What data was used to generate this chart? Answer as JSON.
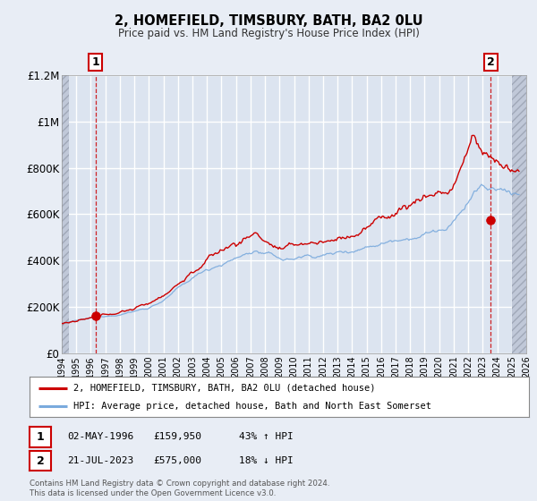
{
  "title": "2, HOMEFIELD, TIMSBURY, BATH, BA2 0LU",
  "subtitle": "Price paid vs. HM Land Registry's House Price Index (HPI)",
  "legend_line1": "2, HOMEFIELD, TIMSBURY, BATH, BA2 0LU (detached house)",
  "legend_line2": "HPI: Average price, detached house, Bath and North East Somerset",
  "transaction1_date": "02-MAY-1996",
  "transaction1_price": "£159,950",
  "transaction1_hpi": "43% ↑ HPI",
  "transaction2_date": "21-JUL-2023",
  "transaction2_price": "£575,000",
  "transaction2_hpi": "18% ↓ HPI",
  "footer1": "Contains HM Land Registry data © Crown copyright and database right 2024.",
  "footer2": "This data is licensed under the Open Government Licence v3.0.",
  "background_color": "#e8edf5",
  "plot_bg_color": "#dce4f0",
  "grid_color": "#ffffff",
  "red_line_color": "#cc0000",
  "blue_line_color": "#7aaadd",
  "vline_color": "#cc0000",
  "xmin": 1994.0,
  "xmax": 2026.0,
  "ymin": 0,
  "ymax": 1200000,
  "yticks": [
    0,
    200000,
    400000,
    600000,
    800000,
    1000000,
    1200000
  ],
  "ytick_labels": [
    "£0",
    "£200K",
    "£400K",
    "£600K",
    "£800K",
    "£1M",
    "£1.2M"
  ],
  "transaction1_x": 1996.33,
  "transaction1_y": 159950,
  "transaction2_x": 2023.54,
  "transaction2_y": 575000
}
